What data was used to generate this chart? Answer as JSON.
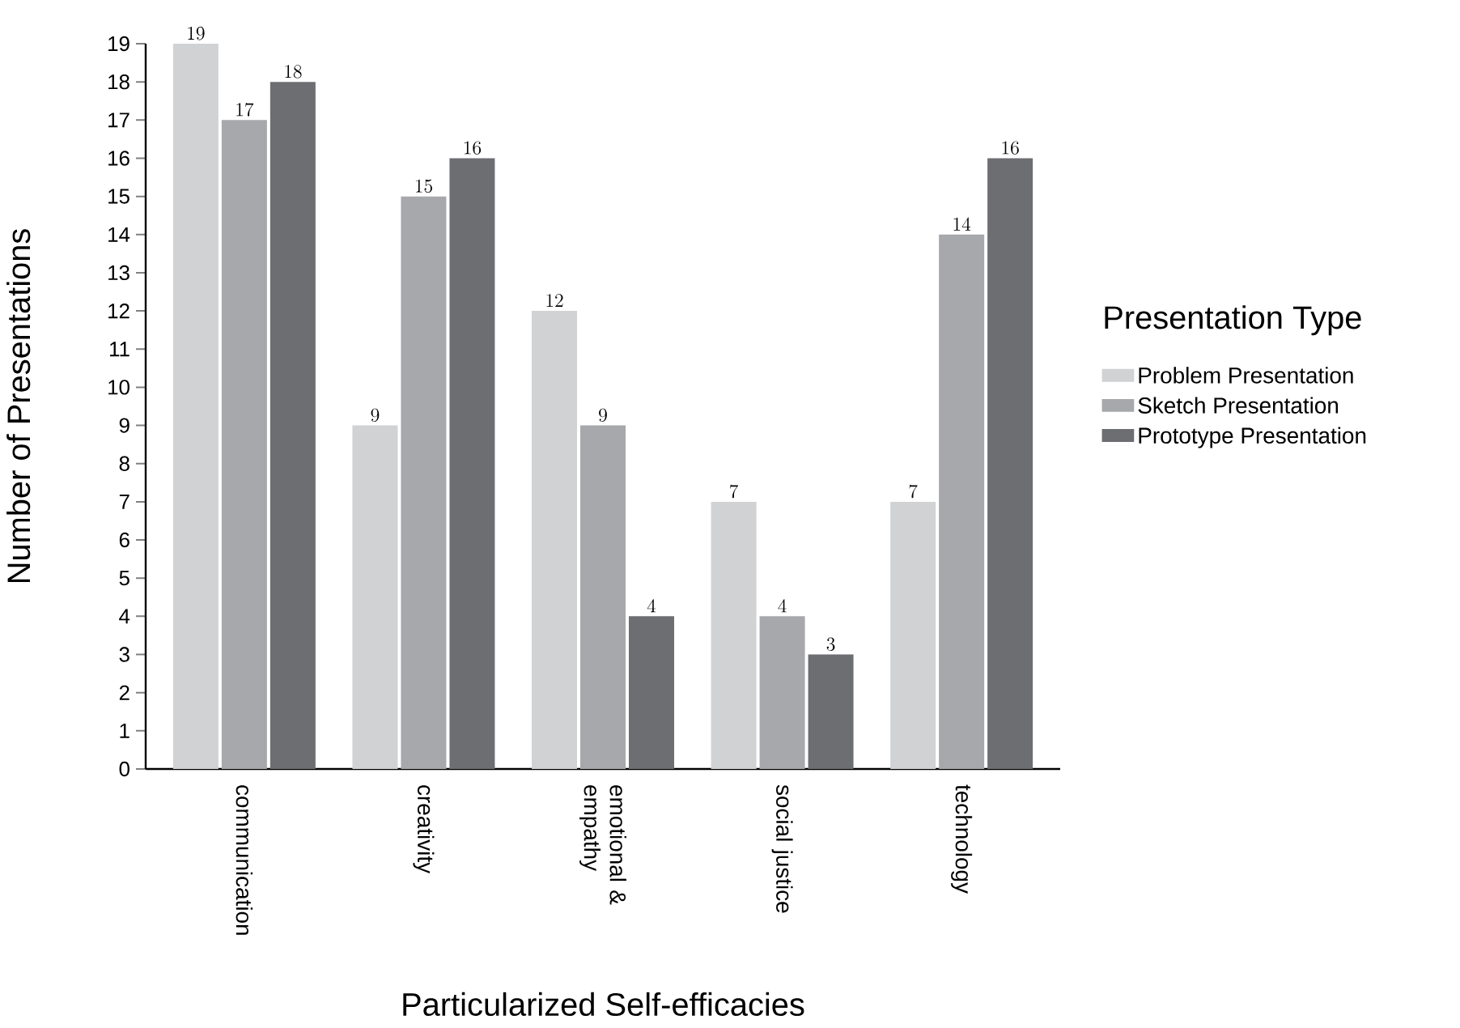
{
  "chart_data": {
    "type": "bar",
    "xlabel": "Particularized Self-efficacies",
    "ylabel": "Number of  Presentations",
    "legend_title": "Presentation Type",
    "categories": [
      "communication",
      "creativity",
      "emotional & empathy",
      "social justice",
      "technology"
    ],
    "series": [
      {
        "name": "Problem Presentation",
        "color": "#d1d2d4",
        "values": [
          19,
          9,
          12,
          7,
          7
        ]
      },
      {
        "name": "Sketch Presentation",
        "color": "#a7a8ab",
        "values": [
          17,
          15,
          9,
          4,
          14
        ]
      },
      {
        "name": "Prototype Presentation",
        "color": "#6d6e72",
        "values": [
          18,
          16,
          4,
          3,
          16
        ]
      }
    ],
    "ylim": [
      0,
      19
    ],
    "yticks": [
      0,
      1,
      2,
      3,
      4,
      5,
      6,
      7,
      8,
      9,
      10,
      11,
      12,
      13,
      14,
      15,
      16,
      17,
      18,
      19
    ],
    "data_labels": true,
    "legend": "right",
    "grid": false
  }
}
